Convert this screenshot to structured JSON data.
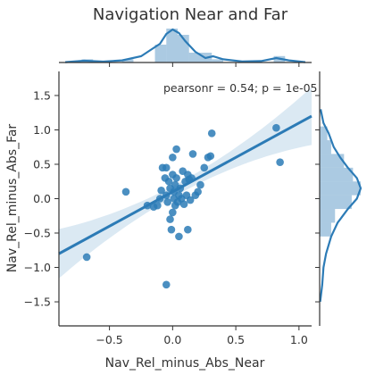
{
  "chart_data": {
    "type": "scatter",
    "title": "Navigation Near and Far",
    "xlabel": "Nav_Rel_minus_Abs_Near",
    "ylabel": "Nav_Rel_minus_Abs_Far",
    "annotation": "pearsonr = 0.54; p = 1e-05",
    "xlim": [
      -0.9,
      1.1
    ],
    "ylim": [
      -1.85,
      1.85
    ],
    "xticks": [
      {
        "value": -0.5,
        "label": "−0.5"
      },
      {
        "value": 0.0,
        "label": "0.0"
      },
      {
        "value": 0.5,
        "label": "0.5"
      },
      {
        "value": 1.0,
        "label": "1.0"
      }
    ],
    "yticks": [
      {
        "value": 1.5,
        "label": "1.5"
      },
      {
        "value": 1.0,
        "label": "1.0"
      },
      {
        "value": 0.5,
        "label": "0.5"
      },
      {
        "value": 0.0,
        "label": "0.0"
      },
      {
        "value": -0.5,
        "label": "−0.5"
      },
      {
        "value": -1.0,
        "label": "−1.0"
      },
      {
        "value": -1.5,
        "label": "−1.5"
      }
    ],
    "grid": false,
    "color": "#2c7bb6",
    "regression": {
      "slope": 1.0,
      "intercept": 0.1,
      "ci_halfwidth_center": 0.08,
      "ci_halfwidth_edge": 0.42
    },
    "points": [
      {
        "x": -0.68,
        "y": -0.85
      },
      {
        "x": -0.37,
        "y": 0.1
      },
      {
        "x": -0.05,
        "y": -1.25
      },
      {
        "x": -0.15,
        "y": -0.12
      },
      {
        "x": -0.12,
        "y": -0.1
      },
      {
        "x": -0.1,
        "y": 0.0
      },
      {
        "x": -0.09,
        "y": 0.12
      },
      {
        "x": -0.08,
        "y": 0.45
      },
      {
        "x": -0.05,
        "y": 0.45
      },
      {
        "x": -0.05,
        "y": 0.05
      },
      {
        "x": -0.04,
        "y": -0.05
      },
      {
        "x": -0.03,
        "y": 0.25
      },
      {
        "x": -0.02,
        "y": 0.15
      },
      {
        "x": -0.02,
        "y": -0.3
      },
      {
        "x": -0.01,
        "y": -0.45
      },
      {
        "x": 0.0,
        "y": 0.6
      },
      {
        "x": 0.0,
        "y": 0.35
      },
      {
        "x": 0.01,
        "y": 0.0
      },
      {
        "x": 0.01,
        "y": 0.1
      },
      {
        "x": 0.02,
        "y": 0.2
      },
      {
        "x": 0.02,
        "y": -0.1
      },
      {
        "x": 0.03,
        "y": 0.72
      },
      {
        "x": 0.03,
        "y": 0.3
      },
      {
        "x": 0.04,
        "y": -0.05
      },
      {
        "x": 0.05,
        "y": 0.05
      },
      {
        "x": 0.05,
        "y": -0.55
      },
      {
        "x": 0.06,
        "y": 0.15
      },
      {
        "x": 0.07,
        "y": 0.0
      },
      {
        "x": 0.08,
        "y": 0.4
      },
      {
        "x": 0.09,
        "y": -0.08
      },
      {
        "x": 0.1,
        "y": 0.25
      },
      {
        "x": 0.11,
        "y": 0.05
      },
      {
        "x": 0.12,
        "y": 0.35
      },
      {
        "x": 0.12,
        "y": -0.45
      },
      {
        "x": 0.13,
        "y": 0.28
      },
      {
        "x": 0.14,
        "y": -0.02
      },
      {
        "x": 0.15,
        "y": 0.3
      },
      {
        "x": 0.16,
        "y": 0.65
      },
      {
        "x": 0.18,
        "y": 0.05
      },
      {
        "x": 0.2,
        "y": 0.1
      },
      {
        "x": 0.22,
        "y": 0.2
      },
      {
        "x": 0.25,
        "y": 0.45
      },
      {
        "x": 0.28,
        "y": 0.6
      },
      {
        "x": 0.3,
        "y": 0.62
      },
      {
        "x": 0.31,
        "y": 0.95
      },
      {
        "x": 0.85,
        "y": 0.53
      },
      {
        "x": 0.82,
        "y": 1.03
      },
      {
        "x": -0.2,
        "y": -0.1
      },
      {
        "x": 0.0,
        "y": -0.2
      },
      {
        "x": -0.06,
        "y": 0.3
      }
    ],
    "x_marginal_kde": [
      {
        "x": -0.85,
        "d": 0.02
      },
      {
        "x": -0.7,
        "d": 0.1
      },
      {
        "x": -0.55,
        "d": 0.05
      },
      {
        "x": -0.4,
        "d": 0.12
      },
      {
        "x": -0.25,
        "d": 0.35
      },
      {
        "x": -0.1,
        "d": 1.05
      },
      {
        "x": -0.05,
        "d": 1.6
      },
      {
        "x": 0.0,
        "d": 1.85
      },
      {
        "x": 0.05,
        "d": 1.65
      },
      {
        "x": 0.1,
        "d": 1.2
      },
      {
        "x": 0.18,
        "d": 0.6
      },
      {
        "x": 0.26,
        "d": 0.25
      },
      {
        "x": 0.32,
        "d": 0.35
      },
      {
        "x": 0.4,
        "d": 0.18
      },
      {
        "x": 0.55,
        "d": 0.06
      },
      {
        "x": 0.7,
        "d": 0.08
      },
      {
        "x": 0.82,
        "d": 0.25
      },
      {
        "x": 0.92,
        "d": 0.12
      },
      {
        "x": 1.05,
        "d": 0.02
      }
    ],
    "x_marginal_hist": [
      {
        "x0": -0.72,
        "x1": -0.63,
        "d": 0.18
      },
      {
        "x0": -0.4,
        "x1": -0.31,
        "d": 0.18
      },
      {
        "x0": -0.14,
        "x1": -0.05,
        "d": 1.0
      },
      {
        "x0": -0.05,
        "x1": 0.04,
        "d": 1.9
      },
      {
        "x0": 0.04,
        "x1": 0.13,
        "d": 1.55
      },
      {
        "x0": 0.13,
        "x1": 0.22,
        "d": 0.55
      },
      {
        "x0": 0.22,
        "x1": 0.31,
        "d": 0.55
      },
      {
        "x0": 0.31,
        "x1": 0.4,
        "d": 0.18
      },
      {
        "x0": 0.8,
        "x1": 0.89,
        "d": 0.36
      }
    ],
    "y_marginal_kde": [
      {
        "y": -1.5,
        "d": 0.02
      },
      {
        "y": -1.25,
        "d": 0.1
      },
      {
        "y": -1.0,
        "d": 0.15
      },
      {
        "y": -0.8,
        "d": 0.25
      },
      {
        "y": -0.55,
        "d": 0.45
      },
      {
        "y": -0.35,
        "d": 0.7
      },
      {
        "y": -0.15,
        "d": 1.1
      },
      {
        "y": 0.0,
        "d": 1.45
      },
      {
        "y": 0.15,
        "d": 1.6
      },
      {
        "y": 0.3,
        "d": 1.45
      },
      {
        "y": 0.45,
        "d": 1.1
      },
      {
        "y": 0.6,
        "d": 0.8
      },
      {
        "y": 0.75,
        "d": 0.55
      },
      {
        "y": 0.95,
        "d": 0.35
      },
      {
        "y": 1.1,
        "d": 0.15
      },
      {
        "y": 1.3,
        "d": 0.04
      }
    ],
    "y_marginal_hist": [
      {
        "y0": -0.55,
        "y1": -0.35,
        "d": 0.45
      },
      {
        "y0": -0.35,
        "y1": -0.15,
        "d": 0.6
      },
      {
        "y0": -0.15,
        "y1": 0.05,
        "d": 1.25
      },
      {
        "y0": 0.05,
        "y1": 0.25,
        "d": 1.6
      },
      {
        "y0": 0.25,
        "y1": 0.45,
        "d": 1.3
      },
      {
        "y0": 0.45,
        "y1": 0.65,
        "d": 0.95
      },
      {
        "y0": 0.65,
        "y1": 0.85,
        "d": 0.45
      },
      {
        "y0": 0.85,
        "y1": 1.05,
        "d": 0.3
      }
    ]
  }
}
